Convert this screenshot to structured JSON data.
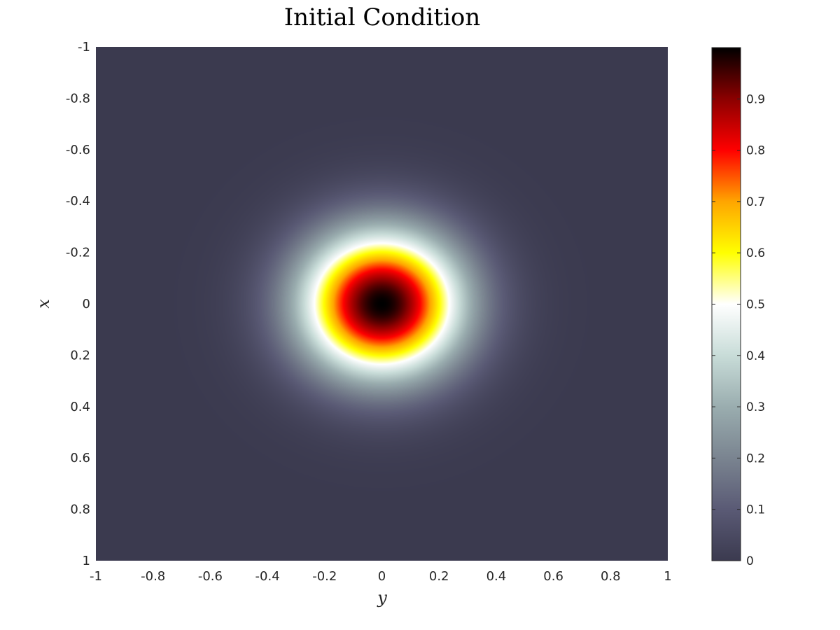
{
  "chart_data": {
    "type": "heatmap",
    "title": "Initial Condition",
    "xlabel": "y",
    "ylabel": "x",
    "x_range": [
      -1,
      1
    ],
    "y_range": [
      -1,
      1
    ],
    "y_reversed": true,
    "x_ticks": [
      -1,
      -0.8,
      -0.6,
      -0.4,
      -0.2,
      0,
      0.2,
      0.4,
      0.6,
      0.8,
      1
    ],
    "x_tick_labels": [
      "-1",
      "-0.8",
      "-0.6",
      "-0.4",
      "-0.2",
      "0",
      "0.2",
      "0.4",
      "0.6",
      "0.8",
      "1"
    ],
    "y_ticks": [
      -1,
      -0.8,
      -0.6,
      -0.4,
      -0.2,
      0,
      0.2,
      0.4,
      0.6,
      0.8,
      1
    ],
    "y_tick_labels": [
      "-1",
      "-0.8",
      "-0.6",
      "-0.4",
      "-0.2",
      "0",
      "0.2",
      "0.4",
      "0.6",
      "0.8",
      "1"
    ],
    "field": {
      "function": "gaussian",
      "center": [
        0,
        0
      ],
      "amplitude": 1,
      "sigma": 0.2
    },
    "colorbar": {
      "range": [
        0,
        1
      ],
      "ticks": [
        0,
        0.1,
        0.2,
        0.3,
        0.4,
        0.5,
        0.6,
        0.7,
        0.8,
        0.9
      ],
      "tick_labels": [
        "0",
        "0.1",
        "0.2",
        "0.3",
        "0.4",
        "0.5",
        "0.6",
        "0.7",
        "0.8",
        "0.9"
      ],
      "placement": "right",
      "colormap": [
        {
          "value": 0.0,
          "color": "#3b3a4f"
        },
        {
          "value": 0.1,
          "color": "#5a5a75"
        },
        {
          "value": 0.2,
          "color": "#7a8490"
        },
        {
          "value": 0.3,
          "color": "#9aadaf"
        },
        {
          "value": 0.4,
          "color": "#c8dcd8"
        },
        {
          "value": 0.5,
          "color": "#ffffff"
        },
        {
          "value": 0.6,
          "color": "#ffff00"
        },
        {
          "value": 0.7,
          "color": "#ffa500"
        },
        {
          "value": 0.8,
          "color": "#ff0000"
        },
        {
          "value": 0.9,
          "color": "#8b0000"
        },
        {
          "value": 1.0,
          "color": "#000000"
        }
      ]
    },
    "grid": false
  }
}
